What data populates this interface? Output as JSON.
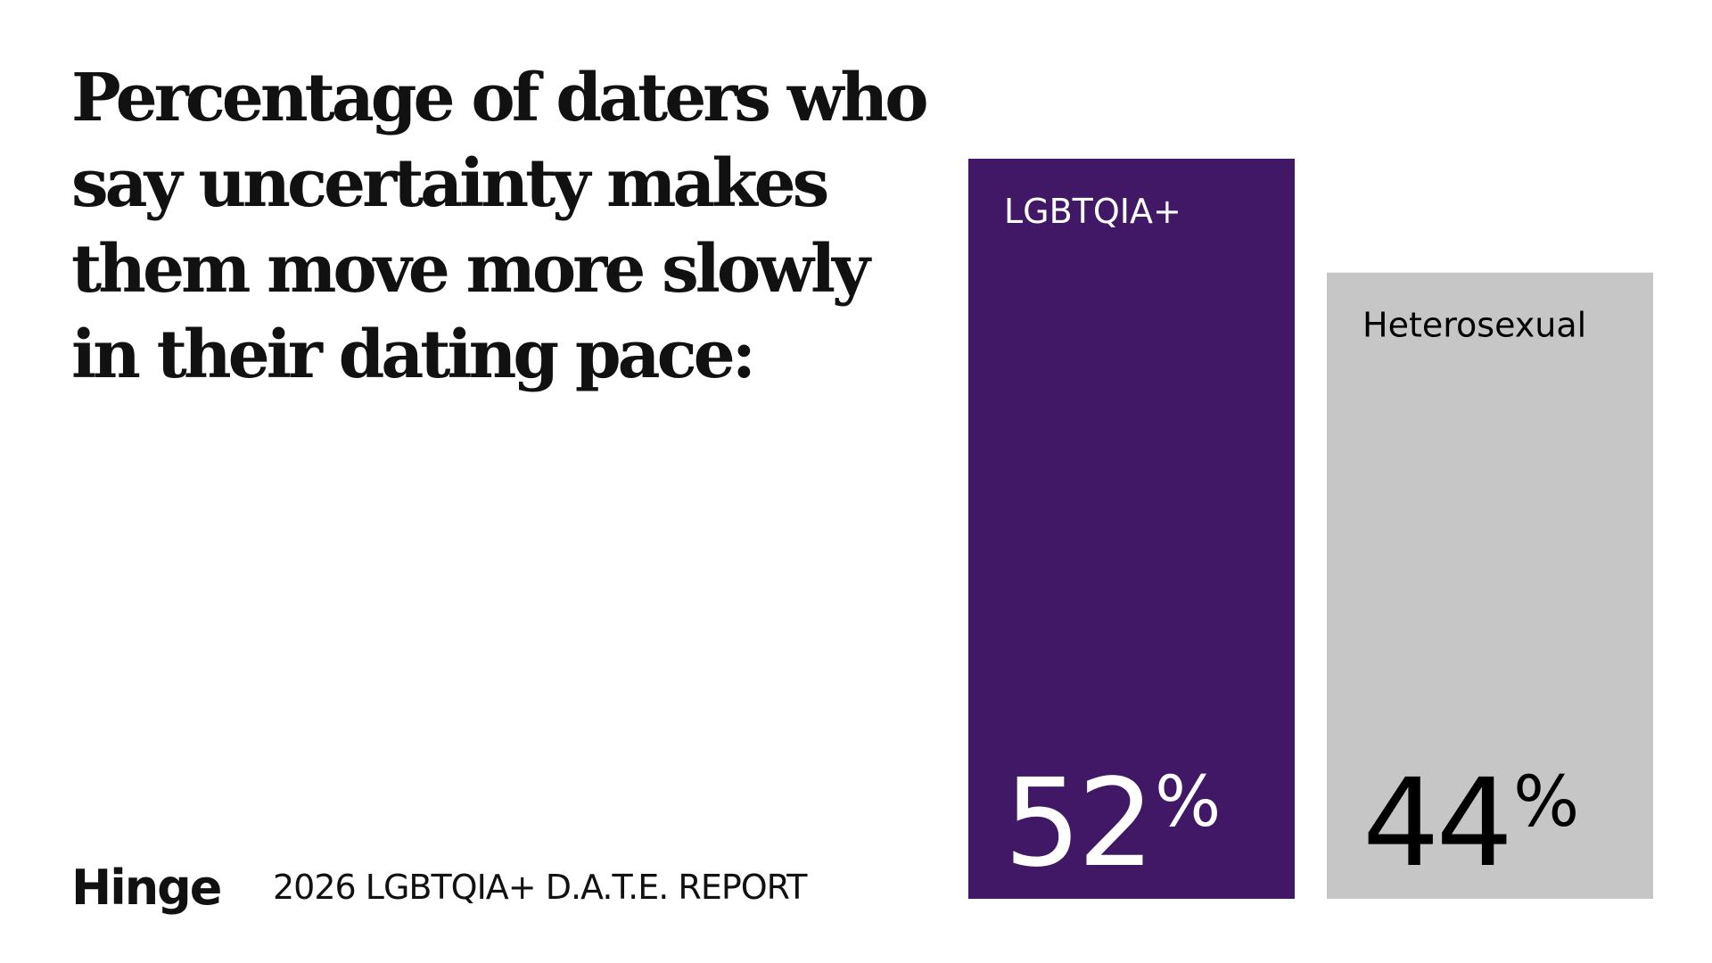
{
  "title_lines": [
    "Percentage of daters who",
    "say uncertainty makes",
    "them move more slowly",
    "in their dating pace:"
  ],
  "footer": {
    "logo": "Hinge",
    "report": "2026 LGBTQIA+ D.A.T.E. REPORT"
  },
  "chart_data": {
    "type": "bar",
    "categories": [
      "LGBTQIA+",
      "Heterosexual"
    ],
    "values": [
      52,
      44
    ],
    "value_labels": [
      "52",
      "44"
    ],
    "unit": "%",
    "colors": [
      "#411866",
      "#c6c6c6"
    ],
    "label_colors": [
      "#ffffff",
      "#000000"
    ],
    "ylim": [
      0,
      52
    ],
    "grid": false
  }
}
